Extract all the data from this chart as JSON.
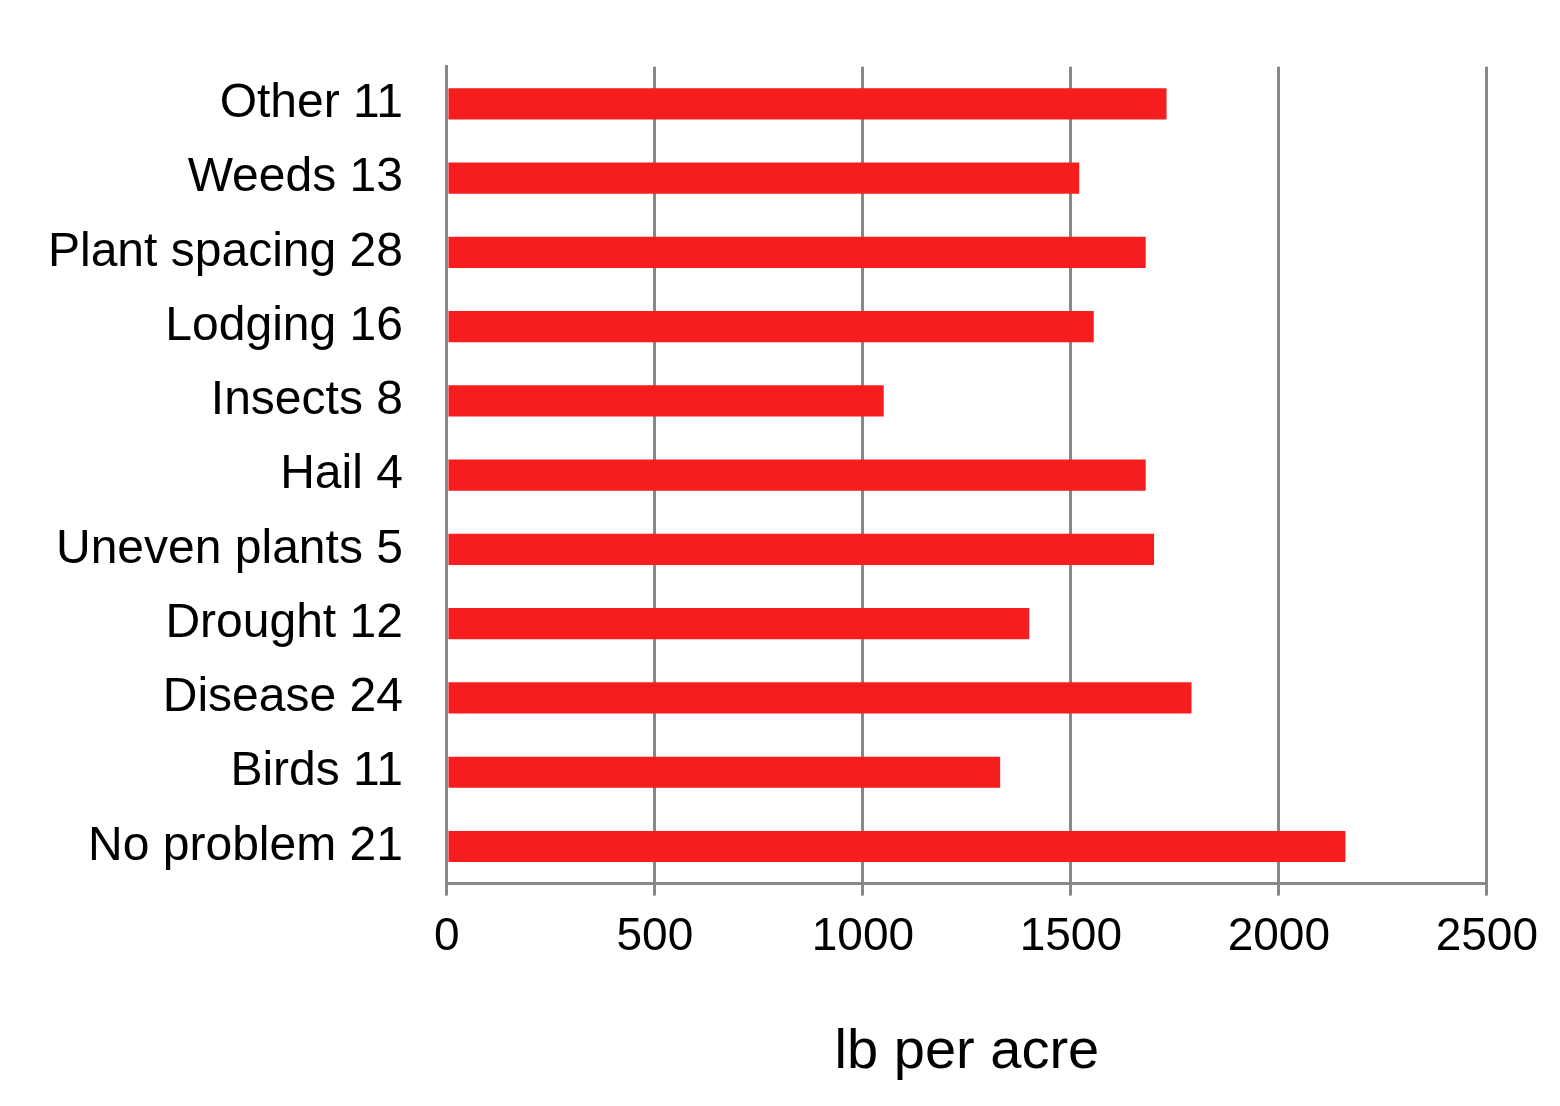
{
  "chart_data": {
    "type": "bar",
    "orientation": "horizontal",
    "xlabel": "lb per acre",
    "categories": [
      "Other 11",
      "Weeds 13",
      "Plant spacing 28",
      "Lodging 16",
      "Insects 8",
      "Hail 4",
      "Uneven plants 5",
      "Drought 12",
      "Disease 24",
      "Birds 11",
      "No problem 21"
    ],
    "values": [
      1730,
      1520,
      1680,
      1555,
      1050,
      1680,
      1700,
      1400,
      1790,
      1330,
      2160
    ],
    "color": "#f51d1d",
    "xlim": [
      0,
      2500
    ],
    "xticks": [
      0,
      500,
      1000,
      1500,
      2000,
      2500
    ],
    "grid": "x",
    "legend": false
  }
}
